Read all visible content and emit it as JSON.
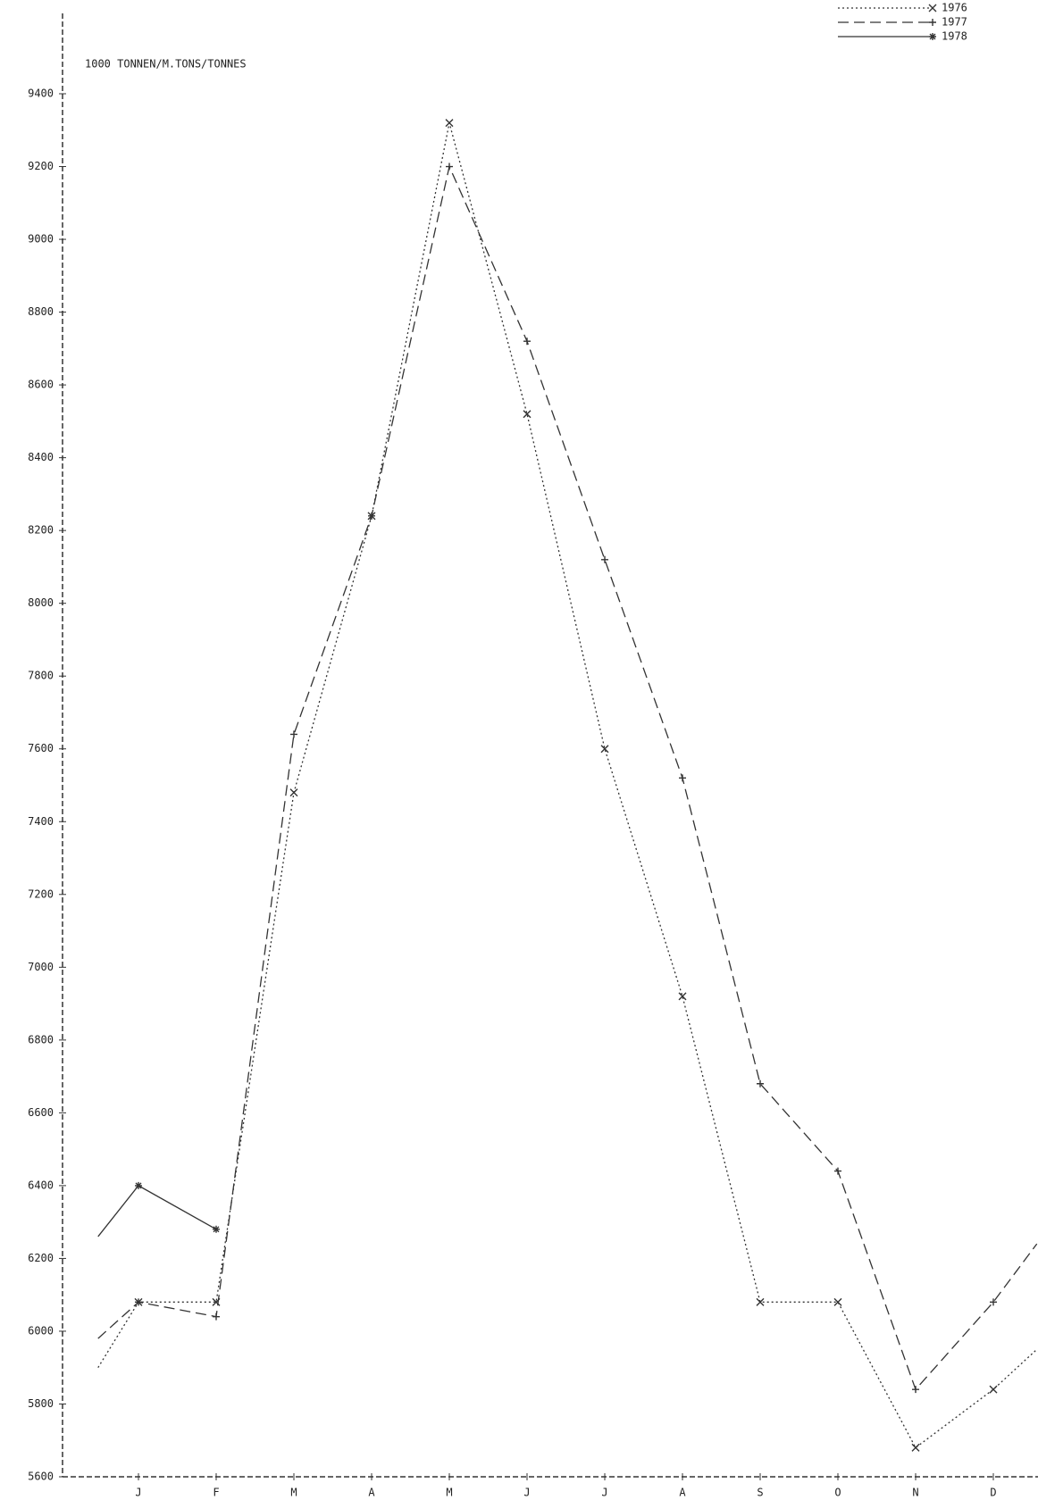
{
  "chart_data": {
    "type": "line",
    "subtitle": "1000 TONNEN/M.TONS/TONNES",
    "categories": [
      null,
      "J",
      "F",
      "M",
      "A",
      "M",
      "J",
      "J",
      "A",
      "S",
      "O",
      "N",
      "D",
      null
    ],
    "series": [
      {
        "name": "1976",
        "color": "#333333",
        "style": "dotted",
        "marker": "x",
        "values": [
          5900,
          6080,
          6080,
          7480,
          8240,
          9320,
          8520,
          7600,
          6920,
          6080,
          6080,
          5680,
          5840,
          5950
        ]
      },
      {
        "name": "1977",
        "color": "#333333",
        "style": "dashed",
        "marker": "+",
        "values": [
          5980,
          6080,
          6040,
          7640,
          8240,
          9200,
          8720,
          8120,
          7520,
          6680,
          6440,
          5840,
          6080,
          6240
        ]
      },
      {
        "name": "1978",
        "color": "#333333",
        "style": "solid",
        "marker": "*",
        "values": [
          6260,
          6400,
          6280,
          null,
          null,
          null,
          null,
          null,
          null,
          null,
          null,
          null,
          null,
          null
        ]
      }
    ],
    "ylim": [
      5600,
      9400
    ],
    "yticks": [
      5600,
      5800,
      6000,
      6200,
      6400,
      6600,
      6800,
      7000,
      7200,
      7400,
      7600,
      7800,
      8000,
      8200,
      8400,
      8600,
      8800,
      9000,
      9200,
      9400
    ],
    "legend": "top-right",
    "grid": false
  }
}
